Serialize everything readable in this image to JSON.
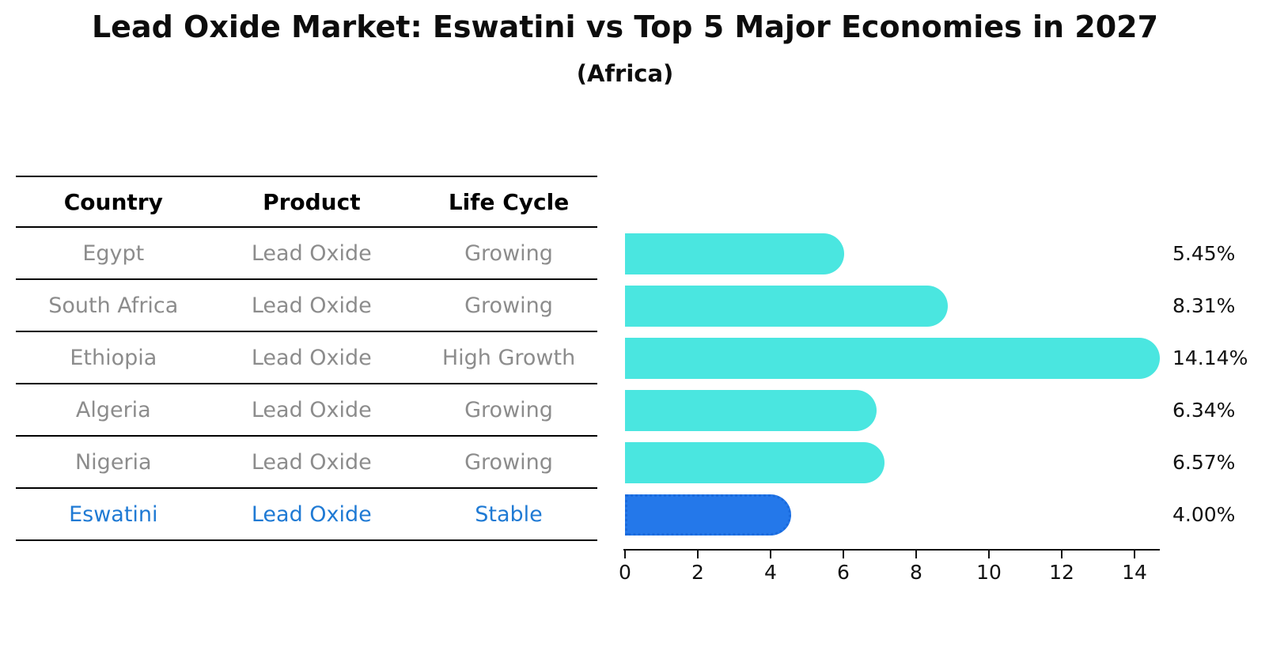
{
  "title": "Lead Oxide Market: Eswatini vs Top 5 Major Economies in 2027",
  "subtitle": "(Africa)",
  "table": {
    "headers": [
      "Country",
      "Product",
      "Life Cycle"
    ],
    "rows": [
      {
        "country": "Egypt",
        "product": "Lead Oxide",
        "life_cycle": "Growing",
        "highlight": false
      },
      {
        "country": "South Africa",
        "product": "Lead Oxide",
        "life_cycle": "Growing",
        "highlight": false
      },
      {
        "country": "Ethiopia",
        "product": "Lead Oxide",
        "life_cycle": "High Growth",
        "highlight": false
      },
      {
        "country": "Algeria",
        "product": "Lead Oxide",
        "life_cycle": "Growing",
        "highlight": false
      },
      {
        "country": "Nigeria",
        "product": "Lead Oxide",
        "life_cycle": "Growing",
        "highlight": false
      },
      {
        "country": "Eswatini",
        "product": "Lead Oxide",
        "life_cycle": "Stable",
        "highlight": true
      }
    ]
  },
  "chart_data": {
    "type": "bar",
    "orientation": "horizontal",
    "title": "Lead Oxide Market: Eswatini vs Top 5 Major Economies in 2027",
    "subtitle": "(Africa)",
    "categories": [
      "Egypt",
      "South Africa",
      "Ethiopia",
      "Algeria",
      "Nigeria",
      "Eswatini"
    ],
    "values": [
      5.45,
      8.31,
      14.14,
      6.34,
      6.57,
      4.0
    ],
    "value_labels": [
      "5.45%",
      "8.31%",
      "14.14%",
      "6.34%",
      "6.57%",
      "4.00%"
    ],
    "x_ticks": [
      0,
      2,
      4,
      6,
      8,
      10,
      12,
      14
    ],
    "xlim": [
      0,
      14.7
    ],
    "xlabel": "",
    "ylabel": "",
    "grid": false,
    "legend": "none",
    "bar_color": "#4AE6E0",
    "highlight_index": 5,
    "highlight_bar_color": "#2478EA",
    "highlight_border_color": "#1A6ADC",
    "highlight_text_color": "#1F7AD4"
  }
}
